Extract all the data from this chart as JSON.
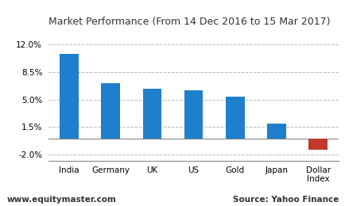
{
  "title": "Market Performance (From 14 Dec 2016 to 15 Mar 2017)",
  "categories": [
    "India",
    "Germany",
    "UK",
    "US",
    "Gold",
    "Japan",
    "Dollar\nIndex"
  ],
  "values": [
    10.8,
    7.1,
    6.4,
    6.2,
    5.4,
    1.9,
    -1.4
  ],
  "bar_colors": [
    "#1e7fcc",
    "#1e7fcc",
    "#1e7fcc",
    "#1e7fcc",
    "#1e7fcc",
    "#1e7fcc",
    "#c0392b"
  ],
  "ylim": [
    -2.8,
    13.5
  ],
  "yticks": [
    -2.0,
    1.5,
    5.0,
    8.5,
    12.0
  ],
  "footer_left": "www.equitymaster.com",
  "footer_right": "Source: Yahoo Finance",
  "background_color": "#ffffff",
  "grid_color": "#bbbbbb",
  "title_fontsize": 9,
  "tick_fontsize": 7.5,
  "footer_fontsize": 7.5,
  "bar_width": 0.45
}
